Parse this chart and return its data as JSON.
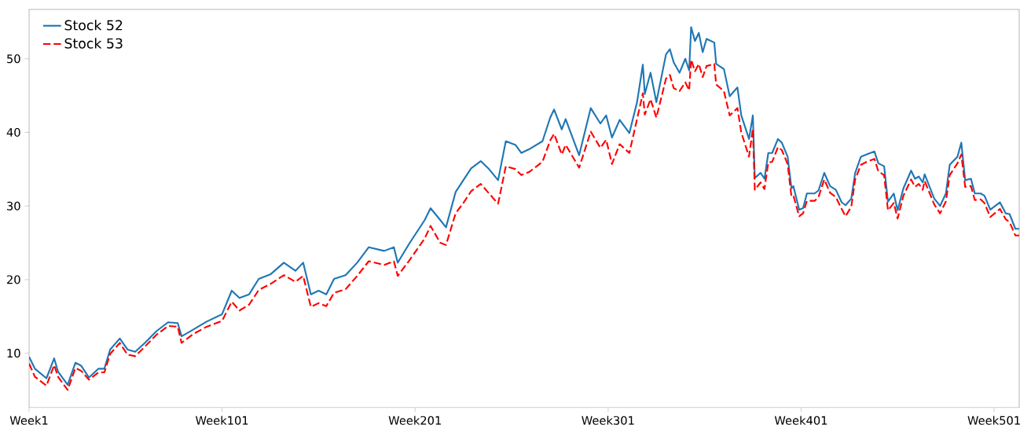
{
  "chart_data": {
    "type": "line",
    "ylim": [
      2.6,
      56.7
    ],
    "yticks": [
      10,
      20,
      30,
      40,
      50
    ],
    "legend": "top left",
    "marker": "none",
    "categories": [
      "Week1",
      null,
      null,
      null,
      null,
      null,
      null,
      null,
      null,
      null,
      null,
      null,
      null,
      null,
      null,
      null,
      null,
      null,
      null,
      null,
      null,
      null,
      null,
      null,
      null,
      null,
      null,
      null,
      null,
      null,
      null,
      null,
      null,
      null,
      null,
      null,
      null,
      null,
      null,
      null,
      null,
      null,
      null,
      null,
      null,
      null,
      null,
      null,
      null,
      null,
      null,
      null,
      null,
      null,
      null,
      null,
      null,
      null,
      null,
      null,
      null,
      null,
      null,
      null,
      null,
      null,
      null,
      null,
      null,
      null,
      null,
      null,
      null,
      null,
      null,
      null,
      null,
      null,
      null,
      null,
      null,
      null,
      null,
      null,
      null,
      null,
      null,
      null,
      null,
      null,
      null,
      null,
      null,
      null,
      null,
      null,
      null,
      null,
      null,
      null,
      "Week101",
      null,
      null,
      null,
      null,
      null,
      null,
      null,
      null,
      null,
      null,
      null,
      null,
      null,
      null,
      null,
      null,
      null,
      null,
      null,
      null,
      null,
      null,
      null,
      null,
      null,
      null,
      null,
      null,
      null,
      null,
      null,
      null,
      null,
      null,
      null,
      null,
      null,
      null,
      null,
      null,
      null,
      null,
      null,
      null,
      null,
      null,
      null,
      null,
      null,
      null,
      null,
      null,
      null,
      null,
      null,
      null,
      null,
      null,
      null,
      null,
      null,
      null,
      null,
      null,
      null,
      null,
      null,
      null,
      null,
      null,
      null,
      null,
      null,
      null,
      null,
      null,
      null,
      null,
      null,
      null,
      null,
      null,
      null,
      null,
      null,
      null,
      null,
      null,
      null,
      null,
      null,
      null,
      null,
      null,
      null,
      null,
      null,
      null,
      null,
      "Week201",
      null,
      null,
      null,
      null,
      null,
      null,
      null,
      null,
      null,
      null,
      null,
      null,
      null,
      null,
      null,
      null,
      null,
      null,
      null,
      null,
      null,
      null,
      null,
      null,
      null,
      null,
      null,
      null,
      null,
      null,
      null,
      null,
      null,
      null,
      null,
      null,
      null,
      null,
      null,
      null,
      null,
      null,
      null,
      null,
      null,
      null,
      null,
      null,
      null,
      null,
      null,
      null,
      null,
      null,
      null,
      null,
      null,
      null,
      null,
      null,
      null,
      null,
      null,
      null,
      null,
      null,
      null,
      null,
      null,
      null,
      null,
      null,
      null,
      null,
      null,
      null,
      null,
      null,
      null,
      null,
      null,
      null,
      null,
      null,
      null,
      null,
      null,
      null,
      null,
      null,
      null,
      null,
      null,
      null,
      null,
      null,
      null,
      null,
      null,
      "Week301",
      null,
      null,
      null,
      null,
      null,
      null,
      null,
      null,
      null,
      null,
      null,
      null,
      null,
      null,
      null,
      null,
      null,
      null,
      null,
      null,
      null,
      null,
      null,
      null,
      null,
      null,
      null,
      null,
      null,
      null,
      null,
      null,
      null,
      null,
      null,
      null,
      null,
      null,
      null,
      null,
      null,
      null,
      null,
      null,
      null,
      null,
      null,
      null,
      null,
      null,
      null,
      null,
      null,
      null,
      null,
      null,
      null,
      null,
      null,
      null,
      null,
      null,
      null,
      null,
      null,
      null,
      null,
      null,
      null,
      null,
      null,
      null,
      null,
      null,
      null,
      null,
      null,
      null,
      null,
      null,
      null,
      null,
      null,
      null,
      null,
      null,
      null,
      null,
      null,
      null,
      null,
      null,
      null,
      null,
      null,
      null,
      null,
      null,
      null,
      "Week401",
      null,
      null,
      null,
      null,
      null,
      null,
      null,
      null,
      null,
      null,
      null,
      null,
      null,
      null,
      null,
      null,
      null,
      null,
      null,
      null,
      null,
      null,
      null,
      null,
      null,
      null,
      null,
      null,
      null,
      null,
      null,
      null,
      null,
      null,
      null,
      null,
      null,
      null,
      null,
      null,
      null,
      null,
      null,
      null,
      null,
      null,
      null,
      null,
      null,
      null,
      null,
      null,
      null,
      null,
      null,
      null,
      null,
      null,
      null,
      null,
      null,
      null,
      null,
      null,
      null,
      null,
      null,
      null,
      null,
      null,
      null,
      null,
      null,
      null,
      null,
      null,
      null,
      null,
      null,
      null,
      null,
      null,
      null,
      null,
      null,
      null,
      null,
      null,
      null,
      null,
      null,
      null,
      null,
      null,
      null,
      null,
      null,
      null,
      null,
      "Week501",
      null,
      null,
      null,
      null,
      null,
      null,
      null,
      null,
      null,
      null,
      null,
      null,
      null
    ],
    "series": [
      {
        "name": "Stock 52",
        "color": "#1f77b4",
        "line_style": "solid",
        "values": [
          9.5,
          null,
          null,
          7.9,
          null,
          null,
          null,
          null,
          null,
          6.6,
          null,
          null,
          null,
          9.3,
          null,
          7.5,
          null,
          null,
          null,
          null,
          5.7,
          null,
          null,
          null,
          8.7,
          null,
          null,
          8.3,
          null,
          null,
          null,
          6.7,
          null,
          null,
          null,
          null,
          7.9,
          null,
          null,
          7.9,
          null,
          null,
          10.5,
          null,
          null,
          null,
          null,
          12.0,
          null,
          null,
          null,
          10.5,
          null,
          null,
          null,
          10.2,
          null,
          null,
          null,
          null,
          11.4,
          null,
          null,
          null,
          null,
          null,
          13.0,
          null,
          null,
          null,
          null,
          null,
          14.2,
          null,
          null,
          null,
          null,
          14.1,
          null,
          12.3,
          null,
          null,
          null,
          null,
          null,
          13.2,
          null,
          null,
          null,
          null,
          null,
          null,
          14.3,
          null,
          null,
          null,
          null,
          null,
          null,
          null,
          15.3,
          null,
          null,
          null,
          null,
          18.5,
          null,
          null,
          null,
          17.5,
          null,
          null,
          null,
          null,
          18.0,
          null,
          null,
          null,
          null,
          20.1,
          null,
          null,
          null,
          null,
          null,
          20.7,
          null,
          null,
          null,
          null,
          null,
          null,
          22.3,
          null,
          null,
          null,
          null,
          null,
          21.2,
          null,
          null,
          null,
          22.3,
          null,
          null,
          null,
          18.0,
          null,
          null,
          null,
          18.5,
          null,
          null,
          null,
          18.0,
          null,
          null,
          null,
          20.1,
          null,
          null,
          null,
          null,
          null,
          20.6,
          null,
          null,
          null,
          null,
          null,
          22.3,
          null,
          null,
          null,
          null,
          null,
          24.4,
          null,
          null,
          null,
          null,
          null,
          null,
          null,
          23.9,
          null,
          null,
          null,
          null,
          24.4,
          null,
          22.3,
          null,
          null,
          null,
          null,
          null,
          24.9,
          null,
          null,
          null,
          null,
          null,
          null,
          null,
          28.1,
          null,
          null,
          29.7,
          null,
          null,
          null,
          null,
          28.1,
          null,
          null,
          27.1,
          null,
          null,
          null,
          null,
          31.9,
          null,
          null,
          null,
          33.5,
          null,
          null,
          null,
          35.1,
          null,
          null,
          null,
          null,
          36.1,
          null,
          null,
          null,
          35.1,
          null,
          null,
          null,
          null,
          33.5,
          null,
          null,
          null,
          38.8,
          null,
          null,
          null,
          null,
          38.3,
          null,
          null,
          37.2,
          null,
          null,
          null,
          37.7,
          null,
          null,
          null,
          null,
          null,
          null,
          38.8,
          null,
          null,
          null,
          42.0,
          null,
          43.1,
          null,
          null,
          null,
          40.4,
          null,
          41.8,
          null,
          null,
          null,
          null,
          null,
          null,
          36.9,
          null,
          null,
          null,
          null,
          null,
          43.3,
          null,
          null,
          null,
          null,
          41.2,
          null,
          null,
          42.3,
          null,
          null,
          39.3,
          null,
          null,
          null,
          41.7,
          null,
          null,
          null,
          null,
          39.9,
          null,
          null,
          null,
          44.1,
          null,
          null,
          49.2,
          45.2,
          null,
          null,
          48.1,
          null,
          null,
          44.1,
          null,
          null,
          null,
          null,
          50.6,
          null,
          51.3,
          null,
          49.5,
          null,
          null,
          48.1,
          null,
          null,
          50.0,
          null,
          48.4,
          54.3,
          null,
          52.4,
          null,
          53.5,
          null,
          50.9,
          null,
          52.7,
          null,
          null,
          null,
          52.2,
          49.3,
          null,
          null,
          null,
          48.6,
          null,
          null,
          44.9,
          null,
          null,
          null,
          46.1,
          null,
          42.3,
          null,
          null,
          null,
          39.1,
          null,
          42.3,
          33.8,
          null,
          null,
          34.5,
          null,
          33.7,
          null,
          37.2,
          null,
          37.2,
          null,
          null,
          39.1,
          null,
          38.6,
          null,
          null,
          36.7,
          null,
          32.4,
          32.7,
          null,
          null,
          29.5,
          null,
          29.7,
          null,
          31.7,
          null,
          null,
          null,
          31.7,
          null,
          32.1,
          null,
          null,
          34.5,
          null,
          null,
          32.7,
          null,
          null,
          32.2,
          null,
          null,
          30.5,
          null,
          30.1,
          null,
          null,
          31.0,
          null,
          34.5,
          null,
          null,
          36.7,
          null,
          null,
          37.0,
          null,
          null,
          null,
          37.4,
          null,
          35.8,
          null,
          null,
          35.4,
          null,
          30.6,
          null,
          null,
          31.7,
          null,
          29.4,
          null,
          null,
          32.4,
          null,
          null,
          null,
          34.8,
          null,
          33.7,
          null,
          34.0,
          null,
          33.2,
          34.3,
          null,
          null,
          null,
          null,
          31.0,
          null,
          null,
          30.0,
          null,
          null,
          31.7,
          null,
          35.6,
          null,
          null,
          null,
          36.7,
          null,
          38.6,
          null,
          33.5,
          null,
          null,
          33.7,
          null,
          31.7,
          null,
          null,
          31.7,
          null,
          31.4,
          null,
          null,
          29.5,
          null,
          null,
          null,
          null,
          30.5,
          null,
          null,
          29.0,
          null,
          28.9,
          null,
          null,
          26.9,
          null,
          26.9
        ]
      },
      {
        "name": "Stock 53",
        "color": "#ff0000",
        "line_style": "dashed",
        "values": [
          8.6,
          null,
          null,
          6.8,
          null,
          null,
          null,
          null,
          null,
          5.6,
          null,
          null,
          null,
          8.4,
          null,
          6.8,
          null,
          null,
          null,
          null,
          5.0,
          null,
          null,
          null,
          8.0,
          null,
          null,
          7.6,
          null,
          null,
          null,
          6.4,
          null,
          null,
          null,
          null,
          7.4,
          null,
          null,
          7.4,
          null,
          null,
          9.9,
          null,
          null,
          null,
          null,
          11.4,
          null,
          null,
          null,
          9.8,
          null,
          null,
          null,
          9.6,
          null,
          null,
          null,
          null,
          10.9,
          null,
          null,
          null,
          null,
          null,
          12.5,
          null,
          null,
          null,
          null,
          null,
          13.7,
          null,
          null,
          null,
          null,
          13.6,
          null,
          11.4,
          null,
          null,
          null,
          null,
          null,
          12.6,
          null,
          null,
          null,
          null,
          null,
          null,
          13.6,
          null,
          null,
          null,
          null,
          null,
          null,
          null,
          14.4,
          null,
          null,
          null,
          null,
          17.0,
          null,
          null,
          null,
          15.8,
          null,
          null,
          null,
          null,
          16.6,
          null,
          null,
          null,
          null,
          18.6,
          null,
          null,
          null,
          null,
          null,
          19.4,
          null,
          null,
          null,
          null,
          null,
          null,
          20.6,
          null,
          null,
          null,
          null,
          null,
          19.7,
          null,
          null,
          null,
          20.5,
          null,
          null,
          null,
          16.3,
          null,
          null,
          null,
          16.8,
          null,
          null,
          null,
          16.4,
          null,
          null,
          null,
          18.2,
          null,
          null,
          null,
          null,
          null,
          18.7,
          null,
          null,
          null,
          null,
          null,
          20.5,
          null,
          null,
          null,
          null,
          null,
          22.5,
          null,
          null,
          null,
          null,
          null,
          null,
          null,
          22.0,
          null,
          null,
          null,
          null,
          22.5,
          null,
          20.5,
          null,
          null,
          null,
          null,
          null,
          22.6,
          null,
          null,
          null,
          null,
          null,
          null,
          null,
          25.6,
          null,
          null,
          27.3,
          null,
          null,
          null,
          null,
          25.0,
          null,
          null,
          24.7,
          null,
          null,
          null,
          null,
          29.0,
          null,
          null,
          null,
          30.4,
          null,
          null,
          null,
          32.0,
          null,
          null,
          null,
          null,
          33.0,
          null,
          null,
          null,
          31.8,
          null,
          null,
          null,
          null,
          30.3,
          null,
          null,
          null,
          35.4,
          null,
          null,
          null,
          null,
          35.0,
          null,
          null,
          34.2,
          null,
          null,
          null,
          34.6,
          null,
          null,
          null,
          null,
          null,
          null,
          36.0,
          null,
          null,
          null,
          38.9,
          null,
          39.8,
          null,
          null,
          null,
          37.0,
          null,
          38.3,
          null,
          null,
          null,
          null,
          null,
          null,
          35.2,
          null,
          null,
          null,
          null,
          null,
          40.1,
          null,
          null,
          null,
          null,
          37.9,
          null,
          null,
          39.0,
          null,
          null,
          35.7,
          null,
          null,
          null,
          38.4,
          null,
          null,
          null,
          null,
          37.2,
          null,
          null,
          null,
          41.8,
          null,
          null,
          45.3,
          42.4,
          null,
          null,
          44.5,
          null,
          null,
          42.0,
          null,
          null,
          null,
          null,
          47.3,
          null,
          47.8,
          null,
          46.0,
          null,
          null,
          45.6,
          null,
          null,
          46.8,
          null,
          45.7,
          49.9,
          null,
          48.3,
          null,
          49.3,
          null,
          47.5,
          null,
          49.0,
          null,
          null,
          null,
          49.3,
          46.5,
          null,
          null,
          null,
          45.6,
          null,
          null,
          42.3,
          null,
          null,
          null,
          43.3,
          null,
          40.0,
          null,
          null,
          null,
          36.7,
          null,
          40.5,
          32.2,
          null,
          null,
          33.2,
          null,
          32.3,
          null,
          35.9,
          null,
          36.0,
          null,
          null,
          38.0,
          null,
          37.6,
          null,
          null,
          35.7,
          null,
          31.3,
          31.4,
          null,
          null,
          28.6,
          null,
          29.0,
          null,
          30.7,
          null,
          null,
          null,
          30.7,
          null,
          31.2,
          null,
          null,
          33.6,
          null,
          null,
          31.8,
          null,
          null,
          31.2,
          null,
          null,
          29.6,
          null,
          28.6,
          null,
          null,
          29.9,
          null,
          33.6,
          null,
          null,
          35.6,
          null,
          null,
          36.0,
          null,
          null,
          null,
          36.4,
          null,
          34.7,
          null,
          null,
          34.2,
          null,
          29.4,
          null,
          null,
          30.4,
          null,
          28.3,
          null,
          null,
          31.4,
          null,
          null,
          null,
          33.6,
          null,
          32.6,
          null,
          33.0,
          null,
          32.2,
          33.4,
          null,
          null,
          null,
          null,
          30.2,
          null,
          null,
          29.0,
          null,
          null,
          30.6,
          null,
          34.2,
          null,
          null,
          null,
          35.8,
          null,
          37.0,
          null,
          32.6,
          null,
          null,
          32.7,
          null,
          30.8,
          null,
          null,
          30.9,
          null,
          30.4,
          null,
          null,
          28.5,
          null,
          null,
          null,
          null,
          29.6,
          null,
          null,
          28.2,
          null,
          27.8,
          null,
          null,
          26.0,
          null,
          26.0
        ]
      }
    ]
  }
}
